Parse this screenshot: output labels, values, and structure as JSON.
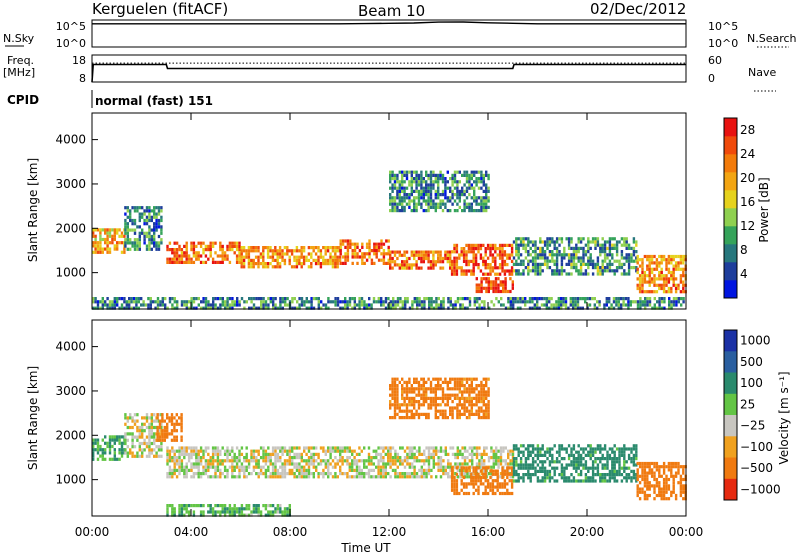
{
  "header": {
    "station": "Kerguelen (fitACF)",
    "beam": "Beam 10",
    "date": "02/Dec/2012"
  },
  "top_panel": {
    "left_label": "N.Sky",
    "left_ticks": [
      "10^5",
      "10^0"
    ],
    "right_ticks": [
      "10^5",
      "10^0"
    ],
    "right_label": "N.Search"
  },
  "freq_panel": {
    "left_label_1": "Freq.",
    "left_label_2": "[MHz]",
    "left_ticks": [
      "18",
      "8"
    ],
    "right_ticks": [
      "60",
      "0"
    ],
    "right_label": "Nave"
  },
  "cpid": {
    "label": "CPID",
    "value": "normal (fast) 151"
  },
  "x_axis": {
    "label": "Time UT",
    "ticks": [
      "00:00",
      "04:00",
      "08:00",
      "12:00",
      "16:00",
      "20:00",
      "00:00"
    ]
  },
  "power_panel": {
    "ylabel": "Slant Range [km]",
    "yticks": [
      "4000",
      "3000",
      "2000",
      "1000"
    ],
    "colorbar_label": "Power [dB]",
    "colorbar_ticks": [
      "28",
      "24",
      "20",
      "16",
      "12",
      "8",
      "4"
    ]
  },
  "velocity_panel": {
    "ylabel": "Slant Range [km]",
    "yticks": [
      "4000",
      "3000",
      "2000",
      "1000"
    ],
    "colorbar_label": "Velocity [m s⁻¹]",
    "colorbar_ticks": [
      "1000",
      "500",
      "100",
      "25",
      "−25",
      "−100",
      "−500",
      "−1000"
    ]
  },
  "chart_data": [
    {
      "type": "line",
      "title": "N.Sky / N.Search",
      "x_unit": "hours UT",
      "y_scale": "log",
      "ylim": [
        1,
        100000
      ],
      "x": [
        0,
        1,
        2,
        3,
        4,
        5,
        6,
        7,
        8,
        9,
        10,
        11,
        12,
        13,
        14,
        15,
        16,
        17,
        18,
        19,
        20,
        21,
        22,
        23,
        24
      ],
      "series": [
        {
          "name": "N.Sky",
          "values": [
            20000,
            20000,
            20000,
            20000,
            20000,
            20000,
            20000,
            20000,
            20000,
            20000,
            20000,
            22000,
            25000,
            28000,
            40000,
            42000,
            30000,
            25000,
            20000,
            20000,
            20000,
            20000,
            20000,
            20000,
            20000
          ]
        }
      ]
    },
    {
      "type": "line",
      "title": "Freq. / Nave",
      "x_unit": "hours UT",
      "ylim": [
        8,
        18
      ],
      "ylim_right": [
        0,
        60
      ],
      "series": [
        {
          "name": "Freq.",
          "x": [
            0,
            0.05,
            3,
            3.05,
            17,
            17.05,
            24
          ],
          "values": [
            8,
            14.5,
            14.5,
            13,
            13,
            14.5,
            14.5
          ]
        },
        {
          "name": "Nave",
          "x": [
            0,
            24
          ],
          "values": [
            42,
            42
          ]
        }
      ]
    },
    {
      "type": "heatmap",
      "title": "Power [dB]",
      "x_unit": "hours UT",
      "y_unit": "km",
      "xlim": [
        0,
        24
      ],
      "ylim": [
        180,
        4600
      ],
      "zlim": [
        0,
        30
      ],
      "color_scale": [
        "#0015e0",
        "#1e3e9c",
        "#27777d",
        "#35a35a",
        "#8fd050",
        "#e6d21d",
        "#f3a512",
        "#f37b0a",
        "#f04a0b",
        "#e81210"
      ],
      "echo_regions": [
        {
          "t0": 0.0,
          "t1": 1.3,
          "r0": 1450,
          "r1": 2000,
          "z": 20
        },
        {
          "t0": 1.3,
          "t1": 2.8,
          "r0": 1550,
          "r1": 2500,
          "z": 8
        },
        {
          "t0": 3.0,
          "t1": 6.0,
          "r0": 1200,
          "r1": 1700,
          "z": 24
        },
        {
          "t0": 6.0,
          "t1": 10.0,
          "r0": 1100,
          "r1": 1600,
          "z": 22
        },
        {
          "t0": 10.0,
          "t1": 12.0,
          "r0": 1200,
          "r1": 1750,
          "z": 24
        },
        {
          "t0": 12.0,
          "t1": 14.5,
          "r0": 1100,
          "r1": 1500,
          "z": 24
        },
        {
          "t0": 14.5,
          "t1": 17.0,
          "r0": 1000,
          "r1": 1650,
          "z": 26
        },
        {
          "t0": 15.5,
          "t1": 17.0,
          "r0": 550,
          "r1": 900,
          "z": 28
        },
        {
          "t0": 12.0,
          "t1": 16.0,
          "r0": 2400,
          "r1": 3300,
          "z": 8
        },
        {
          "t0": 17.0,
          "t1": 22.0,
          "r0": 1000,
          "r1": 1800,
          "z": 9
        },
        {
          "t0": 22.0,
          "t1": 24.0,
          "r0": 600,
          "r1": 1400,
          "z": 22
        },
        {
          "t0": 0.0,
          "t1": 24.0,
          "r0": 200,
          "r1": 450,
          "z": 8
        }
      ]
    },
    {
      "type": "heatmap",
      "title": "Velocity [m s⁻¹]",
      "x_unit": "hours UT",
      "y_unit": "km",
      "xlim": [
        0,
        24
      ],
      "ylim": [
        180,
        4600
      ],
      "zlim": [
        -1000,
        1000
      ],
      "color_levels": [
        1000,
        500,
        100,
        25,
        -25,
        -100,
        -500,
        -1000
      ],
      "color_scale": [
        "#1b31a5",
        "#2a5fa0",
        "#2a8a6d",
        "#63c545",
        "#c8c6c0",
        "#f0a11f",
        "#f07a10",
        "#e62a10"
      ],
      "echo_regions": [
        {
          "t0": 0.0,
          "t1": 1.3,
          "r0": 1450,
          "r1": 2000,
          "z": 120
        },
        {
          "t0": 1.3,
          "t1": 2.8,
          "r0": 1550,
          "r1": 2500,
          "z": 0
        },
        {
          "t0": 2.6,
          "t1": 3.6,
          "r0": 1900,
          "r1": 2500,
          "z": -300
        },
        {
          "t0": 3.0,
          "t1": 17.0,
          "r0": 1050,
          "r1": 1750,
          "z": 0
        },
        {
          "t0": 12.0,
          "t1": 16.0,
          "r0": 2400,
          "r1": 3300,
          "z": -150
        },
        {
          "t0": 14.5,
          "t1": 17.0,
          "r0": 700,
          "r1": 1300,
          "z": -300
        },
        {
          "t0": 17.0,
          "t1": 22.0,
          "r0": 1000,
          "r1": 1800,
          "z": 150
        },
        {
          "t0": 22.0,
          "t1": 24.0,
          "r0": 600,
          "r1": 1400,
          "z": -200
        },
        {
          "t0": 3.0,
          "t1": 8.0,
          "r0": 200,
          "r1": 450,
          "z": 80
        }
      ]
    }
  ]
}
